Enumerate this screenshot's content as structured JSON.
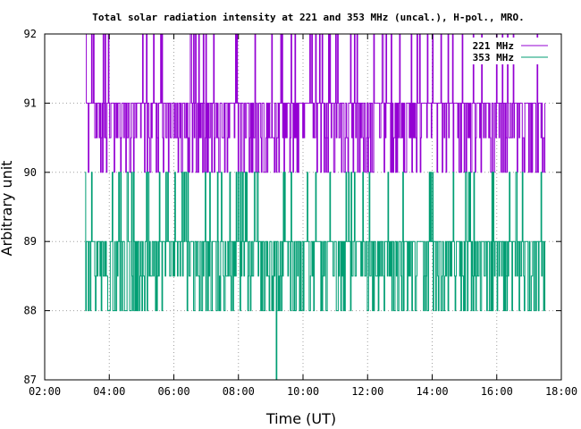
{
  "chart_data": {
    "type": "line",
    "title": "Total solar radiation intensity at 221 and 353 MHz (uncal.), H-pol., MRO.",
    "xlabel": "Time (UT)",
    "ylabel": "Arbitrary unit",
    "xlim": [
      2,
      18
    ],
    "ylim": [
      87,
      92
    ],
    "x_ticks": [
      "02:00",
      "04:00",
      "06:00",
      "08:00",
      "10:00",
      "12:00",
      "14:00",
      "16:00",
      "18:00"
    ],
    "y_ticks": [
      "87",
      "88",
      "89",
      "90",
      "91",
      "92"
    ],
    "grid": true,
    "legend_position": "top-right",
    "series": [
      {
        "name": "221 MHz",
        "color": "#9400d3",
        "time_range": [
          3.25,
          17.5
        ],
        "baseline": 91,
        "low": 90,
        "high": 92,
        "notes": "noisy signal fluctuating between 90 and 91 with frequent spikes to 92"
      },
      {
        "name": "353 MHz",
        "color": "#009e73",
        "time_range": [
          3.25,
          17.5
        ],
        "baseline": 89,
        "low": 88,
        "high": 90,
        "dip": {
          "x": 9.17,
          "y": 87
        },
        "notes": "noisy signal fluctuating between 88 and 90, single dip to 87 near 09:10"
      }
    ]
  }
}
